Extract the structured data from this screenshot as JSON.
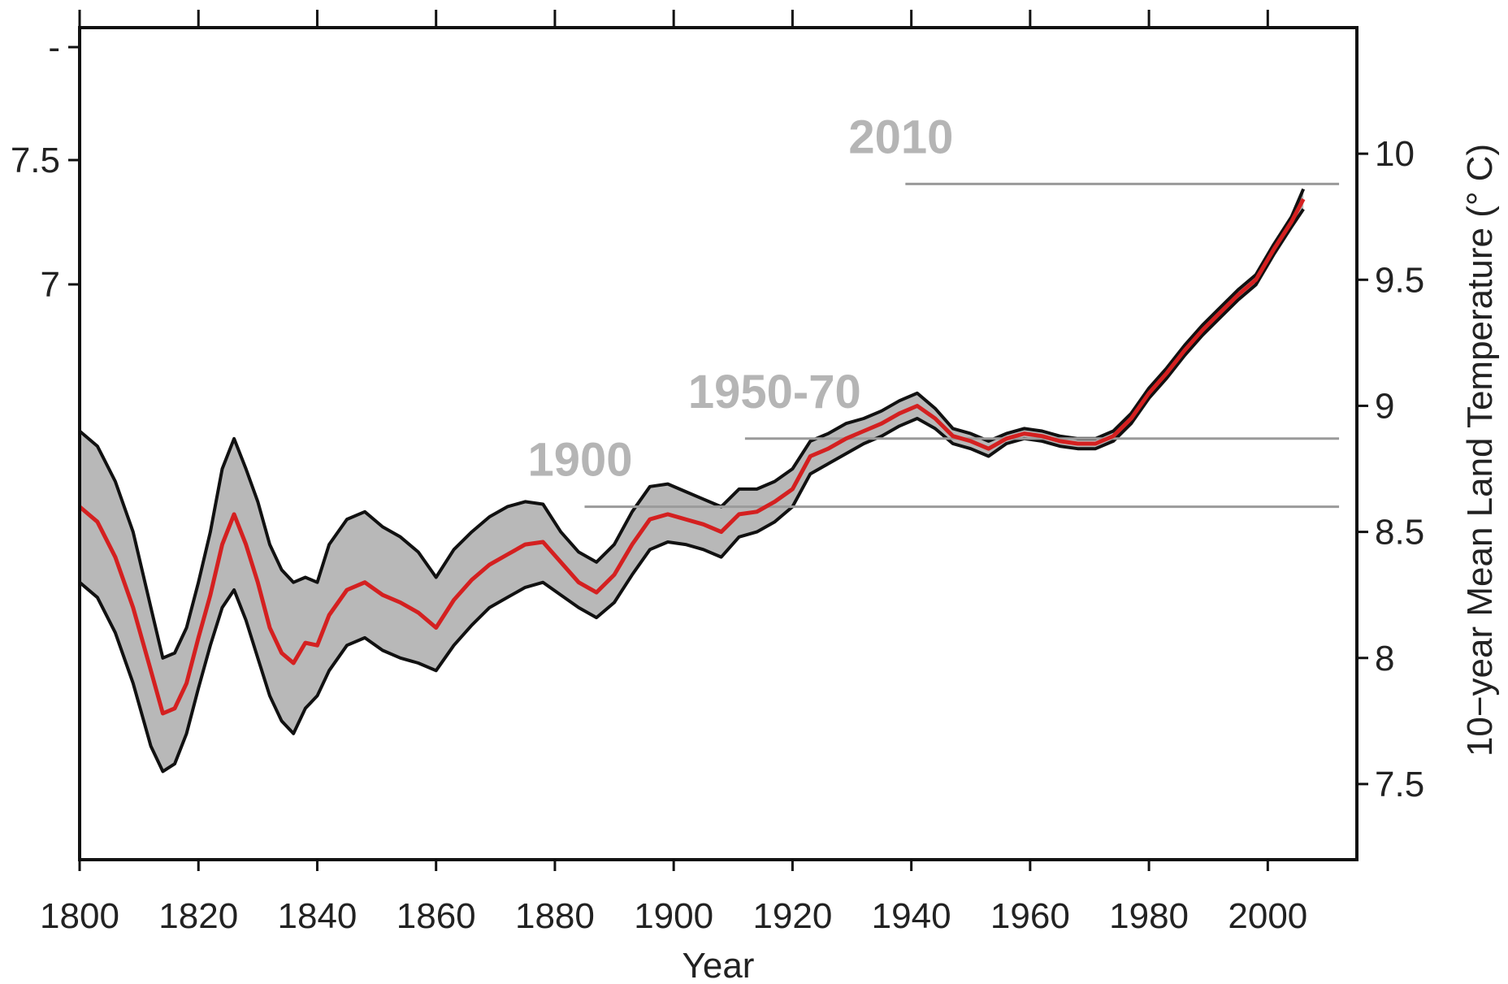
{
  "chart_data": {
    "type": "line",
    "title": "",
    "xlabel": "Year",
    "ylabel_right": "10−year Mean Land Temperature (° C)",
    "ylabel_left": "",
    "xlim": [
      1800,
      2015
    ],
    "ylim_right": [
      7.2,
      10.5
    ],
    "ylim_left_text_ticks": [
      "-",
      "7.5",
      "7"
    ],
    "x_ticks": [
      1800,
      1820,
      1840,
      1860,
      1880,
      1900,
      1920,
      1940,
      1960,
      1980,
      2000
    ],
    "x_tick_labels": [
      "1800",
      "1820",
      "1840",
      "1860",
      "1880",
      "1900",
      "1920",
      "1940",
      "1960",
      "1980",
      "2000"
    ],
    "y_ticks_right": [
      7.5,
      8,
      8.5,
      9,
      9.5,
      10
    ],
    "y_tick_labels_right": [
      "7.5",
      "8",
      "8.5",
      "9",
      "9.5",
      "10"
    ],
    "grid": false,
    "colors": {
      "mean_line": "#d42020",
      "band_fill": "#b8b8b8",
      "band_edge": "#111111",
      "ref_line": "#9a9a9a",
      "ref_text": "#b5b5b5"
    },
    "series": [
      {
        "role": "mean",
        "x": [
          1800,
          1803,
          1806,
          1809,
          1812,
          1814,
          1816,
          1818,
          1820,
          1822,
          1824,
          1826,
          1828,
          1830,
          1832,
          1834,
          1836,
          1838,
          1840,
          1842,
          1845,
          1848,
          1851,
          1854,
          1857,
          1860,
          1863,
          1866,
          1869,
          1872,
          1875,
          1878,
          1881,
          1884,
          1887,
          1890,
          1893,
          1896,
          1899,
          1902,
          1905,
          1908,
          1911,
          1914,
          1917,
          1920,
          1923,
          1926,
          1929,
          1932,
          1935,
          1938,
          1941,
          1944,
          1947,
          1950,
          1953,
          1956,
          1959,
          1962,
          1965,
          1968,
          1971,
          1974,
          1977,
          1980,
          1983,
          1986,
          1989,
          1992,
          1995,
          1998,
          2001,
          2004,
          2006
        ],
        "y": [
          8.6,
          8.54,
          8.4,
          8.2,
          7.95,
          7.78,
          7.8,
          7.9,
          8.08,
          8.25,
          8.45,
          8.57,
          8.45,
          8.3,
          8.12,
          8.02,
          7.98,
          8.06,
          8.05,
          8.17,
          8.27,
          8.3,
          8.25,
          8.22,
          8.18,
          8.12,
          8.23,
          8.31,
          8.37,
          8.41,
          8.45,
          8.46,
          8.38,
          8.3,
          8.26,
          8.33,
          8.45,
          8.55,
          8.57,
          8.55,
          8.53,
          8.5,
          8.57,
          8.58,
          8.62,
          8.67,
          8.8,
          8.83,
          8.87,
          8.9,
          8.93,
          8.97,
          9.0,
          8.95,
          8.88,
          8.86,
          8.83,
          8.87,
          8.89,
          8.88,
          8.86,
          8.85,
          8.85,
          8.88,
          8.95,
          9.05,
          9.13,
          9.22,
          9.3,
          9.37,
          9.44,
          9.5,
          9.62,
          9.73,
          9.82
        ]
      },
      {
        "role": "upper-bound",
        "x": [
          1800,
          1803,
          1806,
          1809,
          1812,
          1814,
          1816,
          1818,
          1820,
          1822,
          1824,
          1826,
          1828,
          1830,
          1832,
          1834,
          1836,
          1838,
          1840,
          1842,
          1845,
          1848,
          1851,
          1854,
          1857,
          1860,
          1863,
          1866,
          1869,
          1872,
          1875,
          1878,
          1881,
          1884,
          1887,
          1890,
          1893,
          1896,
          1899,
          1902,
          1905,
          1908,
          1911,
          1914,
          1917,
          1920,
          1923,
          1926,
          1929,
          1932,
          1935,
          1938,
          1941,
          1944,
          1947,
          1950,
          1953,
          1956,
          1959,
          1962,
          1965,
          1968,
          1971,
          1974,
          1977,
          1980,
          1983,
          1986,
          1989,
          1992,
          1995,
          1998,
          2001,
          2004,
          2006
        ],
        "y": [
          8.9,
          8.84,
          8.7,
          8.5,
          8.2,
          8.0,
          8.02,
          8.12,
          8.3,
          8.5,
          8.75,
          8.87,
          8.75,
          8.62,
          8.45,
          8.35,
          8.3,
          8.32,
          8.3,
          8.45,
          8.55,
          8.58,
          8.52,
          8.48,
          8.42,
          8.32,
          8.43,
          8.5,
          8.56,
          8.6,
          8.62,
          8.61,
          8.5,
          8.42,
          8.38,
          8.45,
          8.58,
          8.68,
          8.69,
          8.66,
          8.63,
          8.6,
          8.67,
          8.67,
          8.7,
          8.75,
          8.86,
          8.89,
          8.93,
          8.95,
          8.98,
          9.02,
          9.05,
          8.99,
          8.91,
          8.89,
          8.86,
          8.89,
          8.91,
          8.9,
          8.88,
          8.87,
          8.87,
          8.9,
          8.97,
          9.07,
          9.15,
          9.24,
          9.32,
          9.39,
          9.46,
          9.52,
          9.64,
          9.75,
          9.86
        ]
      },
      {
        "role": "lower-bound",
        "x": [
          1800,
          1803,
          1806,
          1809,
          1812,
          1814,
          1816,
          1818,
          1820,
          1822,
          1824,
          1826,
          1828,
          1830,
          1832,
          1834,
          1836,
          1838,
          1840,
          1842,
          1845,
          1848,
          1851,
          1854,
          1857,
          1860,
          1863,
          1866,
          1869,
          1872,
          1875,
          1878,
          1881,
          1884,
          1887,
          1890,
          1893,
          1896,
          1899,
          1902,
          1905,
          1908,
          1911,
          1914,
          1917,
          1920,
          1923,
          1926,
          1929,
          1932,
          1935,
          1938,
          1941,
          1944,
          1947,
          1950,
          1953,
          1956,
          1959,
          1962,
          1965,
          1968,
          1971,
          1974,
          1977,
          1980,
          1983,
          1986,
          1989,
          1992,
          1995,
          1998,
          2001,
          2004,
          2006
        ],
        "y": [
          8.3,
          8.24,
          8.1,
          7.9,
          7.65,
          7.55,
          7.58,
          7.7,
          7.88,
          8.05,
          8.2,
          8.27,
          8.15,
          8.0,
          7.85,
          7.75,
          7.7,
          7.8,
          7.85,
          7.95,
          8.05,
          8.08,
          8.03,
          8.0,
          7.98,
          7.95,
          8.05,
          8.13,
          8.2,
          8.24,
          8.28,
          8.3,
          8.25,
          8.2,
          8.16,
          8.22,
          8.33,
          8.43,
          8.46,
          8.45,
          8.43,
          8.4,
          8.48,
          8.5,
          8.54,
          8.6,
          8.73,
          8.77,
          8.81,
          8.85,
          8.88,
          8.92,
          8.95,
          8.91,
          8.85,
          8.83,
          8.8,
          8.85,
          8.87,
          8.86,
          8.84,
          8.83,
          8.83,
          8.86,
          8.93,
          9.03,
          9.11,
          9.2,
          9.28,
          9.35,
          9.42,
          9.48,
          9.6,
          9.71,
          9.78
        ]
      }
    ],
    "reference_lines": [
      {
        "label": "2010",
        "y": 9.88,
        "x_start": 1939,
        "x_end": 2012
      },
      {
        "label": "1950-70",
        "y": 8.87,
        "x_start": 1912,
        "x_end": 2012
      },
      {
        "label": "1900",
        "y": 8.6,
        "x_start": 1885,
        "x_end": 2012
      }
    ]
  }
}
